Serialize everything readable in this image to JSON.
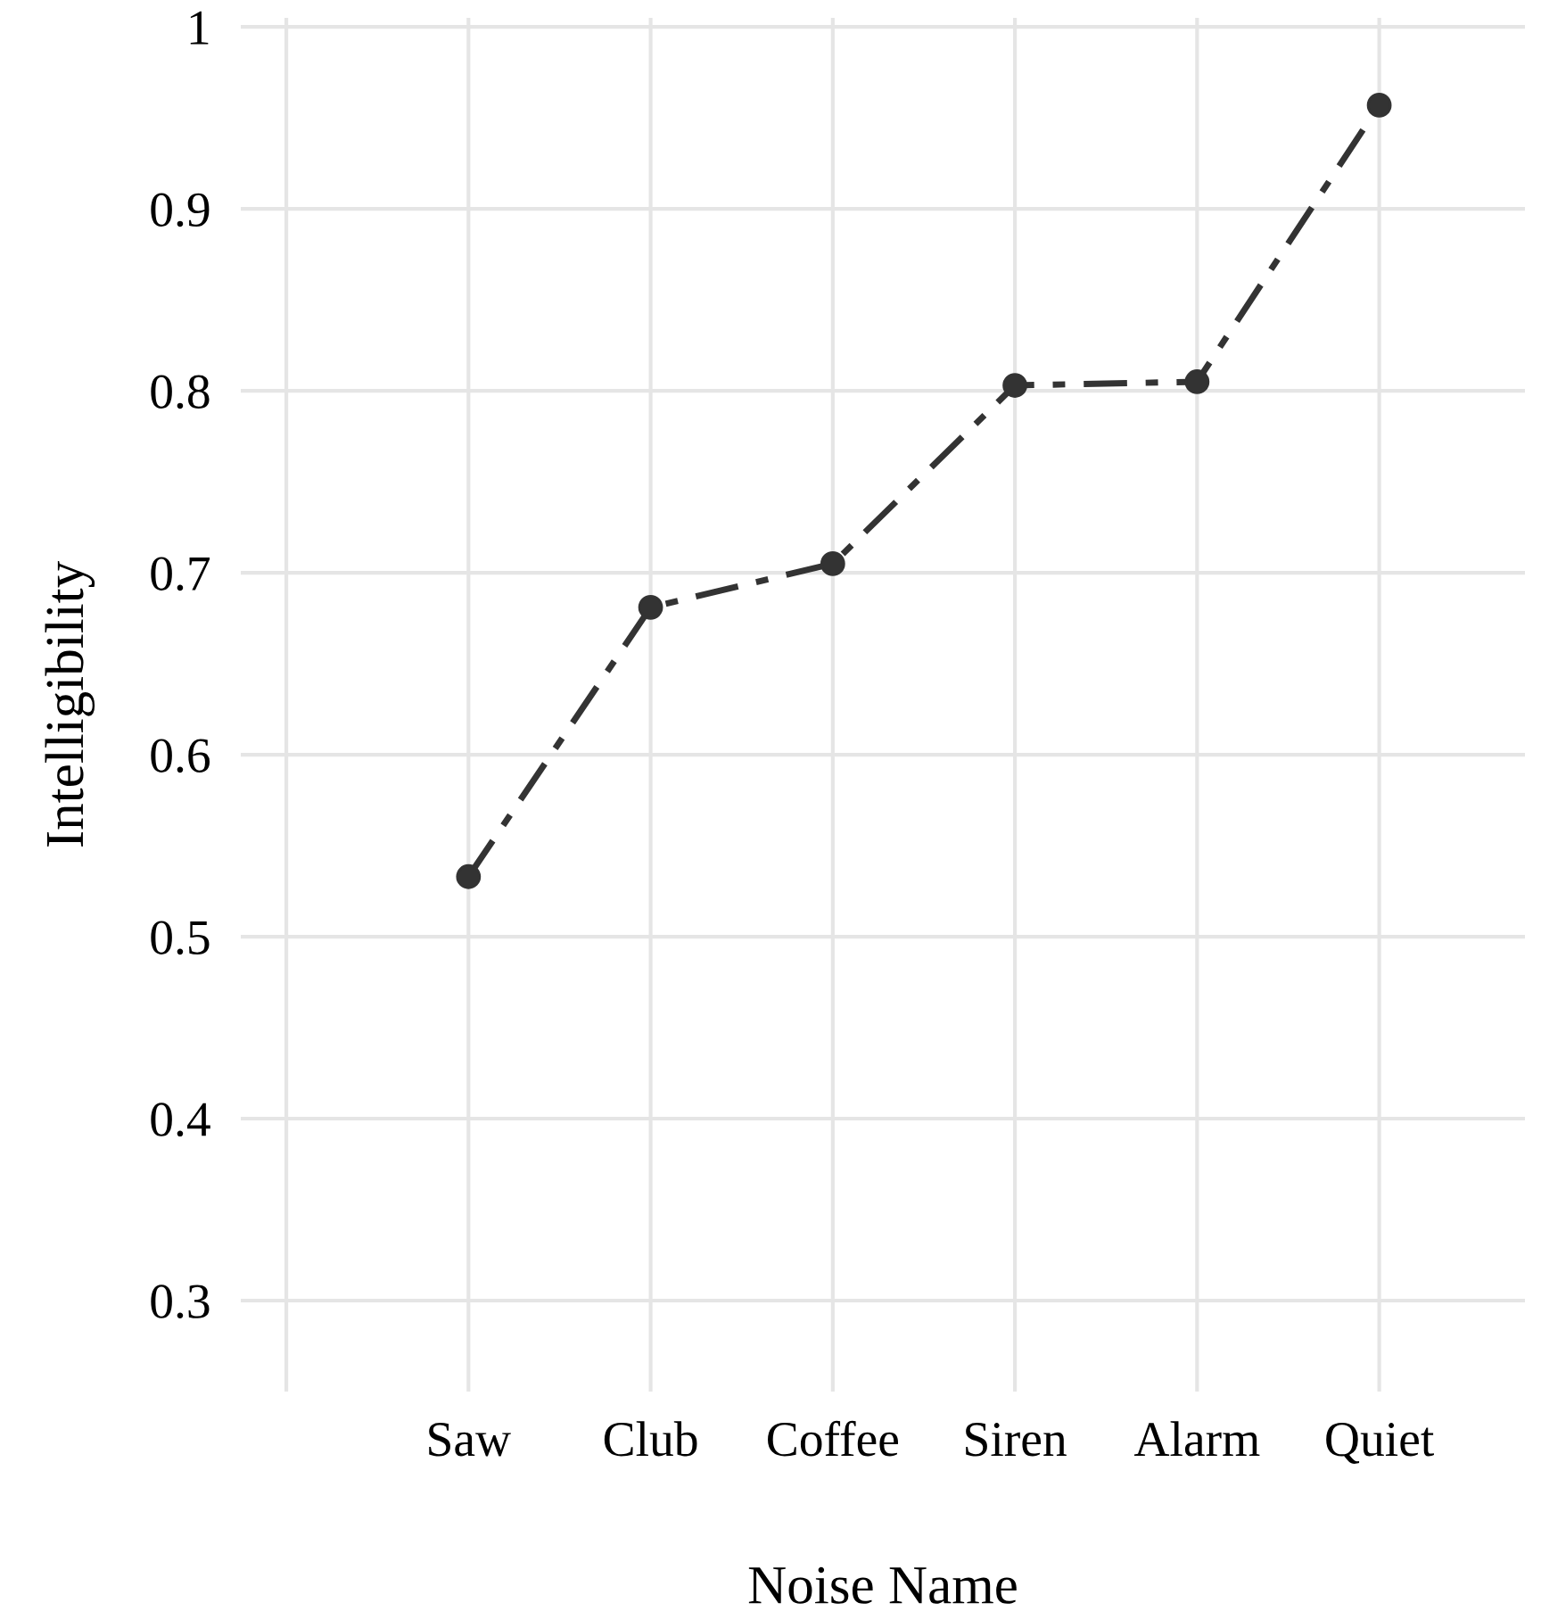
{
  "chart_data": {
    "type": "line",
    "xlabel": "Noise Name",
    "ylabel": "Intelligibility",
    "categories": [
      null,
      "Saw",
      "Club",
      "Coffee",
      "Siren",
      "Alarm",
      "Quiet"
    ],
    "series": [
      {
        "color": "#333333",
        "values": [
          null,
          0.533,
          0.681,
          0.705,
          0.803,
          0.805,
          0.957
        ]
      }
    ],
    "ylim": [
      0.25,
      1.005
    ],
    "yticks": [
      0.3,
      0.4,
      0.5,
      0.6,
      0.7,
      0.8,
      0.9,
      1
    ],
    "grid": true,
    "marker": "circle",
    "line_style": "dashed"
  }
}
